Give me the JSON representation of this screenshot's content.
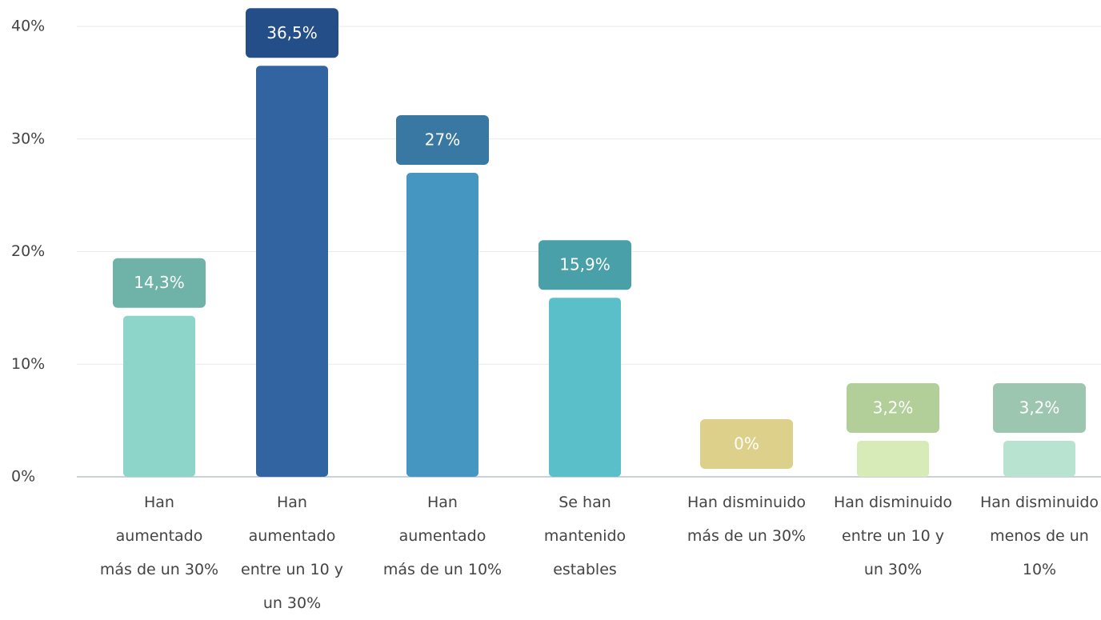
{
  "chart_data": {
    "type": "bar",
    "categories": [
      "Han aumentado más de un 30%",
      "Han aumentado entre un 10 y un 30%",
      "Han aumentado más de un 10%",
      "Se han mantenido estables",
      "Han disminuido más de un 30%",
      "Han disminuido entre un 10 y un 30%",
      "Han disminuido menos de un 10%"
    ],
    "values": [
      14.3,
      36.5,
      27,
      15.9,
      0,
      3.2,
      3.2
    ],
    "value_labels": [
      "14,3%",
      "36,5%",
      "27%",
      "15,9%",
      "0%",
      "3,2%",
      "3,2%"
    ],
    "colors": [
      "#8dd5c8",
      "#3164a0",
      "#4696c2",
      "#5bbfca",
      "#dcd08a",
      "#d7ebb8",
      "#b8e3d0"
    ],
    "label_colors": [
      "#6fb3a8",
      "#234e87",
      "#3a78a4",
      "#4aa0a8",
      "#dcd08a",
      "#b2cf9a",
      "#9cc6b0"
    ],
    "ylim": [
      0,
      40
    ],
    "yticks": [
      {
        "value": 0,
        "label": "0%"
      },
      {
        "value": 10,
        "label": "10%"
      },
      {
        "value": 20,
        "label": "20%"
      },
      {
        "value": 30,
        "label": "30%"
      },
      {
        "value": 40,
        "label": "40%"
      }
    ],
    "grid": true
  }
}
